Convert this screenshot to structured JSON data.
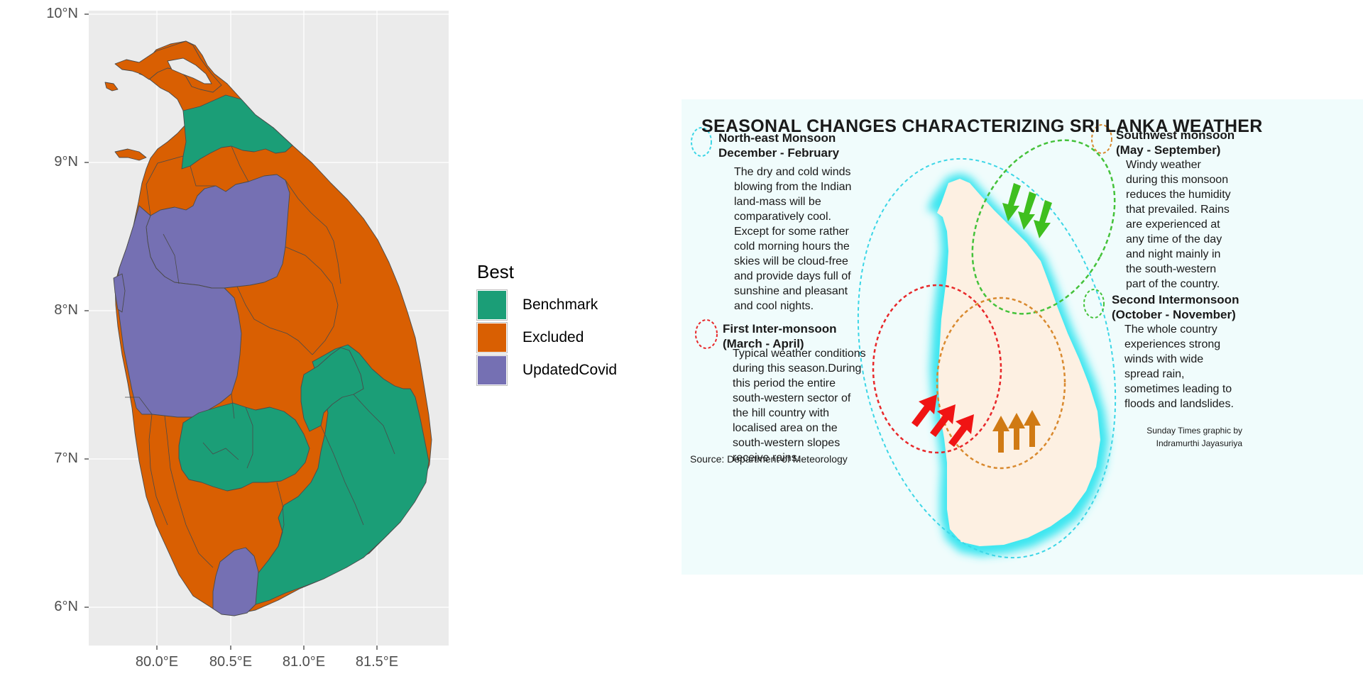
{
  "map": {
    "lat_ticks": [
      "10°N",
      "9°N",
      "8°N",
      "7°N",
      "6°N"
    ],
    "lon_ticks": [
      "80.0°E",
      "80.5°E",
      "81.0°E",
      "81.5°E"
    ],
    "panel_bg": "#ebebeb",
    "grid_color": "#ffffff",
    "colors": {
      "Benchmark": "#1b9e77",
      "Excluded": "#d95f02",
      "UpdatedCovid": "#7570b3"
    }
  },
  "legend": {
    "title": "Best",
    "items": [
      {
        "label": "Benchmark",
        "color": "#1b9e77"
      },
      {
        "label": "Excluded",
        "color": "#d95f02"
      },
      {
        "label": "UpdatedCovid",
        "color": "#7570b3"
      }
    ]
  },
  "poster": {
    "title": "SEASONAL CHANGES CHARACTERIZING SRI LANKA WEATHER",
    "ne": {
      "heading": "North-east Monsoon\nDecember - February",
      "text": "The dry and cold winds\nblowing from the Indian\nland-mass will be\ncomparatively cool.\nExcept for some rather\ncold morning hours the\nskies will be cloud-free\nand provide days full of\nsunshine and pleasant\nand cool nights.",
      "color": "#3cd6e6"
    },
    "sw": {
      "heading": "Southwest monsoon\n(May - September)",
      "text": "Windy weather\nduring this monsoon\nreduces the humidity\nthat prevailed. Rains\nare experienced at\nany time of the day\nand night mainly in\nthe south-western\npart of the country.",
      "color": "#d9892e"
    },
    "first": {
      "heading": "First Inter-monsoon\n(March - April)",
      "text": "Typical weather conditions\nduring this season.During\nthis period the entire\nsouth-western sector of\nthe hill country with\nlocalised area on the\nsouth-western slopes\nreceive rains.",
      "color": "#e8282a"
    },
    "second": {
      "heading": "Second Intermonsoon\n(October - November)",
      "text": "The whole country\nexperiences strong\nwinds with wide\nspread rain,\nsometimes leading to\nfloods and landslides.",
      "color": "#44c23a"
    },
    "credit": "Sunday Times graphic by\nIndramurthi Jayasuriya",
    "source": "Source:  Department of Meteorology",
    "colors": {
      "background": "#f0fcfc",
      "island": "#fdf0e2",
      "coast_glow": "#3ee6f0",
      "arrow_green": "#3fbf1f",
      "arrow_red": "#f01414",
      "arrow_orange": "#d07a14"
    }
  }
}
